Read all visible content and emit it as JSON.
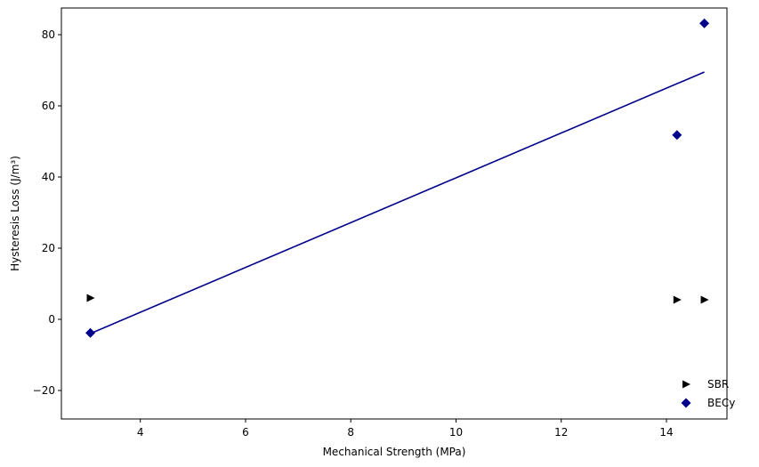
{
  "chart_data": {
    "type": "scatter",
    "title": "",
    "xlabel": "Mechanical Strength (MPa)",
    "ylabel": "Hysteresis Loss (J/m³)",
    "xlim": [
      2.5,
      15.15
    ],
    "ylim": [
      -28,
      87.5
    ],
    "x_ticks": [
      4,
      6,
      8,
      10,
      12,
      14
    ],
    "y_ticks": [
      -20,
      0,
      20,
      40,
      60,
      80
    ],
    "grid": false,
    "legend_position": "bottom-right",
    "series": [
      {
        "name": "SBR",
        "marker": "triangle-right",
        "color": "#000000",
        "x": [
          3.05,
          14.2,
          14.72
        ],
        "y": [
          6.0,
          5.5,
          5.5
        ]
      },
      {
        "name": "BECy",
        "marker": "diamond",
        "color": "#00008B",
        "x": [
          3.05,
          14.2,
          14.72
        ],
        "y": [
          -3.8,
          51.8,
          83.2
        ]
      }
    ],
    "trendline": {
      "series": "BECy",
      "color": "#00008B",
      "x": [
        3.05,
        14.72
      ],
      "y": [
        -4.0,
        69.5
      ]
    }
  }
}
